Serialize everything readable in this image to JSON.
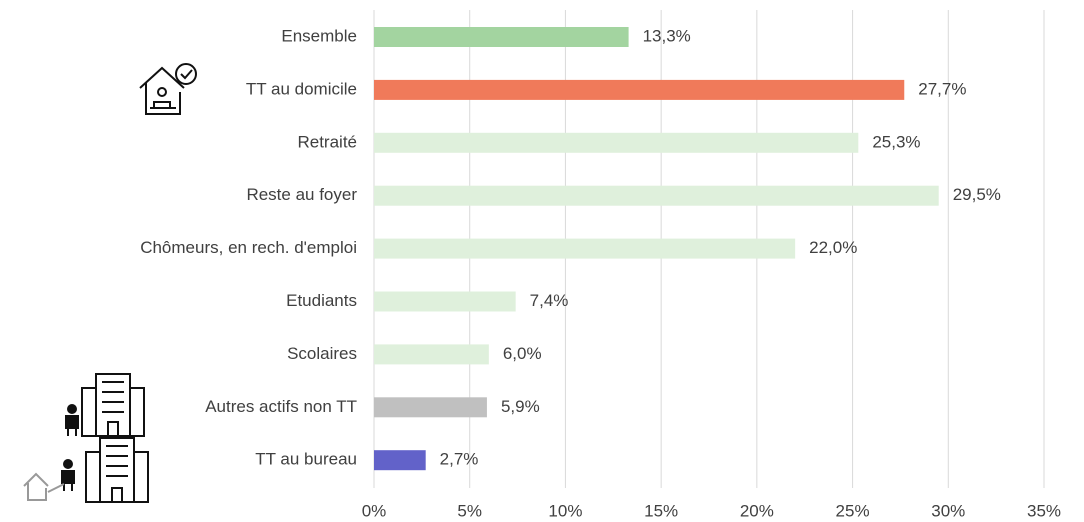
{
  "chart_data": {
    "type": "bar",
    "categories": [
      "Ensemble",
      "TT au domicile",
      "Retraité",
      "Reste au foyer",
      "Chômeurs, en rech. d'emploi",
      "Etudiants",
      "Scolaires",
      "Autres actifs non TT",
      "TT au bureau"
    ],
    "values": [
      13.3,
      27.7,
      25.3,
      29.5,
      22.0,
      7.4,
      6.0,
      5.9,
      2.7
    ],
    "value_labels": [
      "13,3%",
      "27,7%",
      "25,3%",
      "29,5%",
      "22,0%",
      "7,4%",
      "6,0%",
      "5,9%",
      "2,7%"
    ],
    "colors": [
      "#a3d4a0",
      "#f07a5a",
      "#dff0dc",
      "#dff0dc",
      "#dff0dc",
      "#dff0dc",
      "#dff0dc",
      "#c0c0c0",
      "#6262c9"
    ],
    "xlim": [
      0,
      35
    ],
    "xticks": [
      {
        "value": 0,
        "label": "0%"
      },
      {
        "value": 5,
        "label": "5%"
      },
      {
        "value": 10,
        "label": "10%"
      },
      {
        "value": 15,
        "label": "15%"
      },
      {
        "value": 20,
        "label": "20%"
      },
      {
        "value": 25,
        "label": "25%"
      },
      {
        "value": 30,
        "label": "30%"
      },
      {
        "value": 35,
        "label": "35%"
      }
    ],
    "grid": true
  }
}
